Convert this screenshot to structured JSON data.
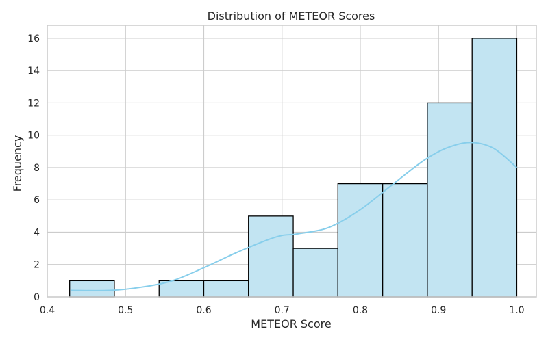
{
  "chart_data": {
    "type": "bar",
    "title": "Distribution of METEOR Scores",
    "xlabel": "METEOR Score",
    "ylabel": "Frequency",
    "xlim": [
      0.4,
      1.025
    ],
    "ylim": [
      0,
      16.8
    ],
    "xticks": [
      0.4,
      0.5,
      0.6,
      0.7,
      0.8,
      0.9,
      1.0
    ],
    "xtick_labels": [
      "0.4",
      "0.5",
      "0.6",
      "0.7",
      "0.8",
      "0.9",
      "1.0"
    ],
    "yticks": [
      0,
      2,
      4,
      6,
      8,
      10,
      12,
      14,
      16
    ],
    "yticks_labels": [
      "0",
      "2",
      "4",
      "6",
      "8",
      "10",
      "12",
      "14",
      "16"
    ],
    "grid": true,
    "bin_edges": [
      0.4286,
      0.4857,
      0.5429,
      0.6,
      0.6571,
      0.7143,
      0.7714,
      0.8286,
      0.8857,
      0.9429,
      1.0
    ],
    "values": [
      1,
      0,
      1,
      1,
      5,
      3,
      7,
      7,
      12,
      16
    ],
    "kde": {
      "x": [
        0.43,
        0.48,
        0.52,
        0.56,
        0.6,
        0.64,
        0.68,
        0.7,
        0.72,
        0.76,
        0.8,
        0.84,
        0.88,
        0.91,
        0.94,
        0.97,
        1.0
      ],
      "y": [
        0.4,
        0.4,
        0.6,
        1.0,
        1.8,
        2.7,
        3.5,
        3.8,
        3.9,
        4.3,
        5.4,
        6.9,
        8.4,
        9.2,
        9.55,
        9.2,
        8.0
      ]
    },
    "colors": {
      "bar_fill": "#c2e4f2",
      "bar_edge": "#000000",
      "kde_line": "#87ceeb",
      "grid": "#cccccc",
      "axes_edge": "#cccccc"
    }
  }
}
